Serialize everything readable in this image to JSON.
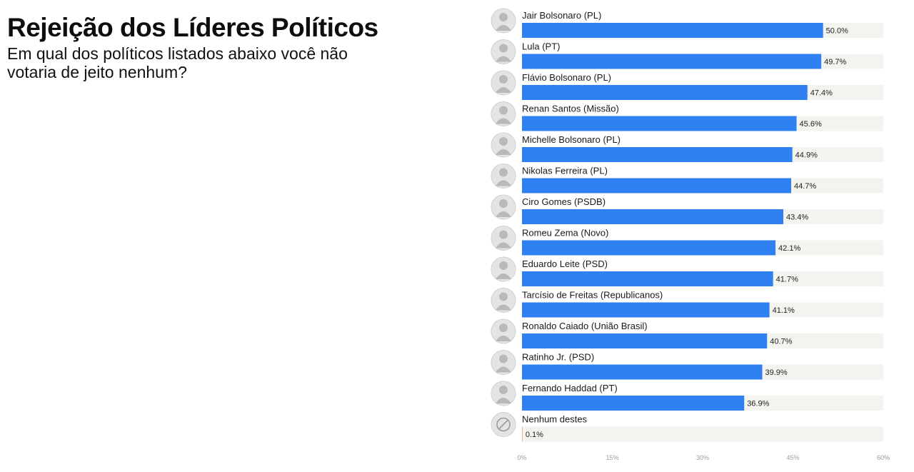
{
  "header": {
    "title": "Rejeição dos Líderes Políticos",
    "subtitle": "Em qual dos políticos listados abaixo você não votaria de jeito nenhum?"
  },
  "chart_data": {
    "type": "bar",
    "orientation": "horizontal",
    "categories": [
      "Jair Bolsonaro (PL)",
      "Lula (PT)",
      "Flávio Bolsonaro (PL)",
      "Renan Santos (Missão)",
      "Michelle Bolsonaro (PL)",
      "Nikolas Ferreira (PL)",
      "Ciro Gomes (PSDB)",
      "Romeu Zema (Novo)",
      "Eduardo Leite (PSD)",
      "Tarcísio de Freitas (Republicanos)",
      "Ronaldo Caiado (União Brasil)",
      "Ratinho Jr. (PSD)",
      "Fernando Haddad (PT)",
      "Nenhum destes"
    ],
    "values": [
      50.0,
      49.7,
      47.4,
      45.6,
      44.9,
      44.7,
      43.4,
      42.1,
      41.7,
      41.1,
      40.7,
      39.9,
      36.9,
      0.1
    ],
    "value_labels": [
      "50.0%",
      "49.7%",
      "47.4%",
      "45.6%",
      "44.9%",
      "44.7%",
      "43.4%",
      "42.1%",
      "41.7%",
      "41.1%",
      "40.7%",
      "39.9%",
      "36.9%",
      "0.1%"
    ],
    "xlim": [
      0,
      60
    ],
    "x_ticks": [
      0,
      15,
      30,
      45,
      60
    ],
    "x_tick_labels": [
      "0%",
      "15%",
      "30%",
      "45%",
      "60%"
    ],
    "colors": {
      "bar": "#2f80f0",
      "bar_none": "#e8a27a",
      "track": "#f3f3ef"
    },
    "grid": false,
    "legend": "none"
  }
}
